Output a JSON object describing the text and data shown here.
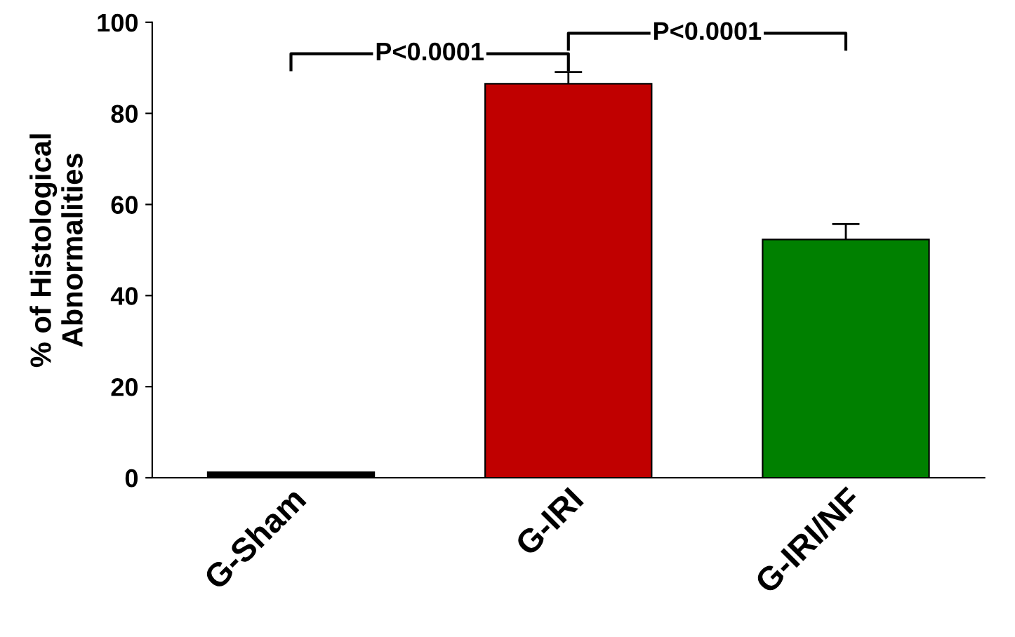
{
  "chart_data": {
    "type": "bar",
    "ylabel": "% of Histological\nAbnormalities",
    "categories": [
      "G-Sham",
      "G-IRI",
      "G-IRI/NF"
    ],
    "values": [
      1.2,
      86.5,
      52.3
    ],
    "colors": [
      "#000000",
      "#c00000",
      "#008000"
    ],
    "errors": [
      null,
      2.6,
      3.4
    ],
    "ylim": [
      0,
      100
    ],
    "yticks": [
      0,
      20,
      40,
      60,
      80,
      100
    ],
    "grid": false,
    "annotations": [
      "P<0.0001",
      "P<0.0001"
    ]
  }
}
